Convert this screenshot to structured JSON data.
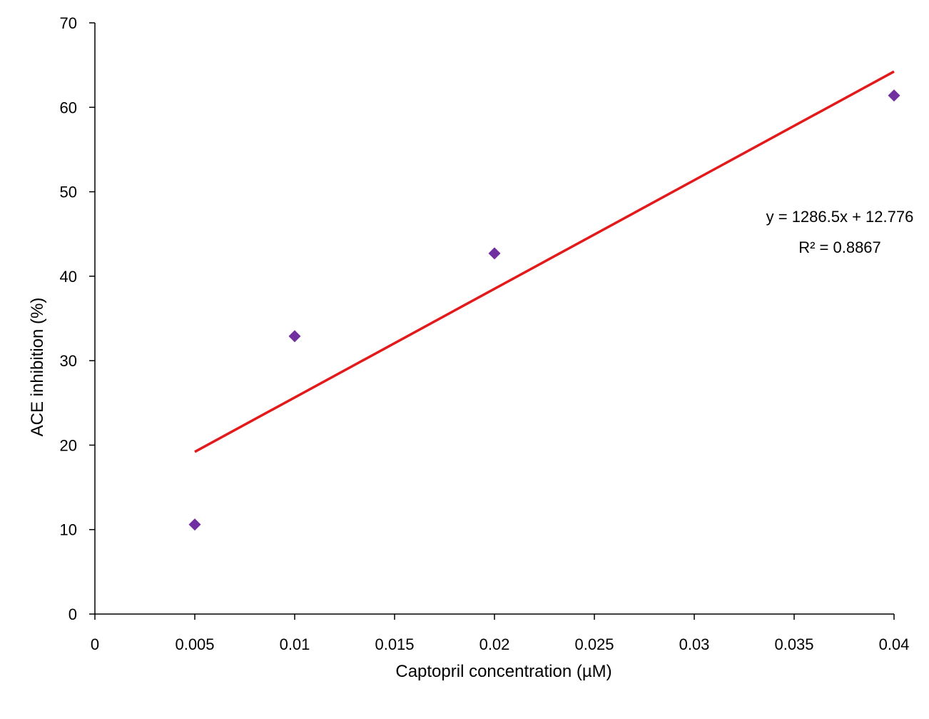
{
  "chart_data": {
    "type": "scatter",
    "title": "",
    "xlabel": "Captopril concentration (µM)",
    "ylabel": "ACE inhibition (%)",
    "xlim": [
      0,
      0.04
    ],
    "ylim": [
      0,
      70
    ],
    "x_ticks": [
      0,
      0.005,
      0.01,
      0.015,
      0.02,
      0.025,
      0.03,
      0.035,
      0.04
    ],
    "x_tick_labels": [
      "0",
      "0.005",
      "0.01",
      "0.015",
      "0.02",
      "0.025",
      "0.03",
      "0.035",
      "0.04"
    ],
    "y_ticks": [
      0,
      10,
      20,
      30,
      40,
      50,
      60,
      70
    ],
    "y_tick_labels": [
      "0",
      "10",
      "20",
      "30",
      "40",
      "50",
      "60",
      "70"
    ],
    "grid": false,
    "legend": "none",
    "series": [
      {
        "marker": "diamond",
        "color": "#7030A0",
        "points": [
          {
            "x": 0.005,
            "y": 10.6
          },
          {
            "x": 0.01,
            "y": 32.9
          },
          {
            "x": 0.02,
            "y": 42.7
          },
          {
            "x": 0.04,
            "y": 61.4
          }
        ]
      }
    ],
    "trendline": {
      "type": "linear",
      "slope": 1286.5,
      "intercept": 12.776,
      "x_range": [
        0.005,
        0.04
      ],
      "color": "#E31A1C",
      "equation_label": "y = 1286.5x + 12.776",
      "r2_label": "R² = 0.8867"
    }
  }
}
